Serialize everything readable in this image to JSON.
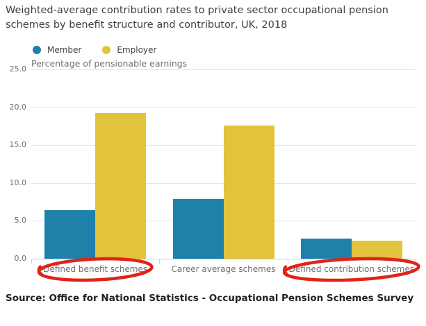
{
  "title": "Weighted-average contribution rates to private sector occupational pension schemes by benefit structure and contributor, UK, 2018",
  "axis_title": "Percentage of pensionable earnings",
  "source": "Source: Office for National Statistics - Occupational Pension Schemes Survey",
  "colors": {
    "member": "#1f81aa",
    "employer": "#e2c33c",
    "annotation_red": "#e02418",
    "gridline": "#e4e4e4",
    "axis_line": "#c2d2db",
    "tick_text": "#6e6f71"
  },
  "legend": [
    {
      "label": "Member",
      "color": "#1f81aa"
    },
    {
      "label": "Employer",
      "color": "#e2c33c"
    }
  ],
  "chart_data": {
    "type": "bar",
    "categories": [
      "Defined benefit schemes",
      "Career average schemes",
      "Defined contribution schemes"
    ],
    "series": [
      {
        "name": "Member",
        "color": "#1f81aa",
        "values": [
          6.4,
          7.9,
          2.7
        ]
      },
      {
        "name": "Employer",
        "color": "#e2c33c",
        "values": [
          19.2,
          17.6,
          2.4
        ]
      }
    ],
    "title": "Weighted-average contribution rates to private sector occupational pension schemes by benefit structure and contributor, UK, 2018",
    "xlabel": "",
    "ylabel": "Percentage of pensionable earnings",
    "ylim": [
      0,
      25
    ],
    "yticks": [
      0.0,
      5.0,
      10.0,
      15.0,
      20.0,
      25.0
    ],
    "grid": true,
    "legend_position": "top-left",
    "annotations": [
      {
        "type": "hand-drawn-ellipse",
        "target": "Defined benefit schemes",
        "color": "#e02418"
      },
      {
        "type": "hand-drawn-ellipse",
        "target": "Defined contribution schemes",
        "color": "#e02418"
      }
    ]
  }
}
